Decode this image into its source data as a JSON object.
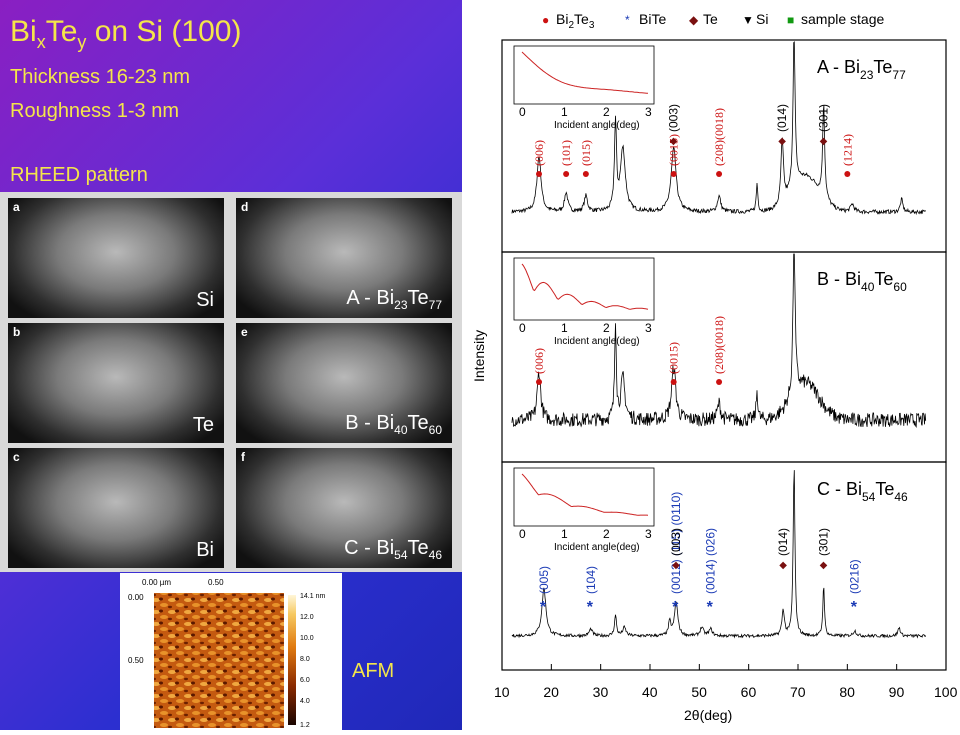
{
  "header": {
    "title_main": "Bi",
    "title_sub_x": "x",
    "title_mid": "Te",
    "title_sub_y": "y",
    "title_rest": " on Si (100)",
    "thickness": "Thickness 16-23 nm",
    "roughness": "Roughness  1-3 nm",
    "rheed_title": "RHEED pattern"
  },
  "rheed": {
    "panels": [
      {
        "letter": "a",
        "label": "Si",
        "sub": "",
        "label_post": "",
        "sub_post": ""
      },
      {
        "letter": "d",
        "label": "A - Bi",
        "sub": "23",
        "label_post": "Te",
        "sub_post": "77"
      },
      {
        "letter": "b",
        "label": "Te",
        "sub": "",
        "label_post": "",
        "sub_post": ""
      },
      {
        "letter": "e",
        "label": "B - Bi",
        "sub": "40",
        "label_post": "Te",
        "sub_post": "60"
      },
      {
        "letter": "c",
        "label": "Bi",
        "sub": "",
        "label_post": "",
        "sub_post": ""
      },
      {
        "letter": "f",
        "label": "C - Bi",
        "sub": "54",
        "label_post": "Te",
        "sub_post": "46"
      }
    ]
  },
  "afm": {
    "label": "AFM",
    "x_ticks": [
      "0.00 µm",
      "0.50"
    ],
    "y_ticks": [
      "0.00",
      "0.50"
    ],
    "scale_ticks": [
      "14.1 nm",
      "12.0",
      "10.0",
      "8.0",
      "6.0",
      "4.0",
      "1.2"
    ]
  },
  "chart_data": {
    "type": "line",
    "xlabel": "2θ(deg)",
    "ylabel": "Intensity",
    "xlim": [
      10,
      100
    ],
    "x_ticks": [
      "10",
      "20",
      "30",
      "40",
      "50",
      "60",
      "70",
      "80",
      "90",
      "100"
    ],
    "legend": [
      {
        "symbol": "●",
        "color": "#cc1111",
        "name": "Bi",
        "sub": "2",
        "post": "Te",
        "sub2": "3"
      },
      {
        "symbol": "*",
        "color": "#1a3ab5",
        "name": "BiTe",
        "sub": "",
        "post": "",
        "sub2": ""
      },
      {
        "symbol": "◆",
        "color": "#7a1010",
        "name": "Te",
        "sub": "",
        "post": "",
        "sub2": ""
      },
      {
        "symbol": "▼",
        "color": "#000000",
        "name": "Si",
        "sub": "",
        "post": "",
        "sub2": ""
      },
      {
        "symbol": "■",
        "color": "#119911",
        "name": "sample stage",
        "sub": "",
        "post": "",
        "sub2": ""
      }
    ],
    "inset": {
      "xlabel": "Incident angle(deg)",
      "ticks": [
        "0",
        "1",
        "2",
        "3"
      ]
    },
    "panels": [
      {
        "id": "A",
        "label_pre": "A - Bi",
        "label_sub1": "23",
        "label_mid": "Te",
        "label_sub2": "77",
        "peaks": [
          {
            "x": 17.5,
            "h": 0.35,
            "w": 0.5
          },
          {
            "x": 23.0,
            "h": 0.12,
            "w": 0.4
          },
          {
            "x": 27.0,
            "h": 0.1,
            "w": 0.4
          },
          {
            "x": 33.0,
            "h": 0.55,
            "w": 0.25
          },
          {
            "x": 34.5,
            "h": 0.4,
            "w": 0.6
          },
          {
            "x": 44.8,
            "h": 0.4,
            "w": 0.6
          },
          {
            "x": 54.0,
            "h": 0.1,
            "w": 0.4
          },
          {
            "x": 61.7,
            "h": 0.18,
            "w": 0.2
          },
          {
            "x": 66.8,
            "h": 0.4,
            "w": 0.3
          },
          {
            "x": 69.2,
            "h": 1.0,
            "w": 0.25
          },
          {
            "x": 75.2,
            "h": 0.6,
            "w": 0.25
          },
          {
            "x": 81.0,
            "h": 0.05,
            "w": 0.4
          },
          {
            "x": 91.0,
            "h": 0.08,
            "w": 0.3
          }
        ],
        "labels_red": [
          {
            "text": "(006)",
            "x": 17.5
          },
          {
            "text": "(101)",
            "x": 23.0
          },
          {
            "text": "(015)",
            "x": 27.0
          },
          {
            "text": "(0015)",
            "x": 44.8
          },
          {
            "text": "(208)(0018)",
            "x": 54.0
          },
          {
            "text": "(1214)",
            "x": 80.0
          }
        ],
        "labels_black": [
          {
            "text": "(003)",
            "x": 44.8
          },
          {
            "text": "(014)",
            "x": 66.8
          },
          {
            "text": "(301)",
            "x": 75.2
          }
        ]
      },
      {
        "id": "B",
        "label_pre": "B - Bi",
        "label_sub1": "40",
        "label_mid": "Te",
        "label_sub2": "60",
        "peaks": [
          {
            "x": 17.5,
            "h": 0.3,
            "w": 0.4
          },
          {
            "x": 33.0,
            "h": 0.6,
            "w": 0.2
          },
          {
            "x": 34.5,
            "h": 0.25,
            "w": 0.5
          },
          {
            "x": 44.8,
            "h": 0.32,
            "w": 0.5
          },
          {
            "x": 54.0,
            "h": 0.1,
            "w": 0.4
          },
          {
            "x": 61.7,
            "h": 0.18,
            "w": 0.2
          },
          {
            "x": 69.2,
            "h": 1.0,
            "w": 0.25
          }
        ],
        "labels_red": [
          {
            "text": "(006)",
            "x": 17.5
          },
          {
            "text": "(0015)",
            "x": 44.8
          },
          {
            "text": "(208)(0018)",
            "x": 54.0
          }
        ],
        "labels_black": []
      },
      {
        "id": "C",
        "label_pre": "C - Bi",
        "label_sub1": "54",
        "label_mid": "Te",
        "label_sub2": "46",
        "peaks": [
          {
            "x": 18.5,
            "h": 0.28,
            "w": 0.5
          },
          {
            "x": 28.0,
            "h": 0.04,
            "w": 0.4
          },
          {
            "x": 33.0,
            "h": 0.12,
            "w": 0.25
          },
          {
            "x": 34.8,
            "h": 0.05,
            "w": 0.4
          },
          {
            "x": 44.0,
            "h": 0.08,
            "w": 0.3
          },
          {
            "x": 45.3,
            "h": 0.2,
            "w": 0.4
          },
          {
            "x": 50.5,
            "h": 0.05,
            "w": 0.4
          },
          {
            "x": 52.3,
            "h": 0.04,
            "w": 0.4
          },
          {
            "x": 67.0,
            "h": 0.15,
            "w": 0.3
          },
          {
            "x": 69.2,
            "h": 1.0,
            "w": 0.22
          },
          {
            "x": 75.2,
            "h": 0.3,
            "w": 0.2
          },
          {
            "x": 81.5,
            "h": 0.03,
            "w": 0.4
          },
          {
            "x": 90.5,
            "h": 0.05,
            "w": 0.3
          }
        ],
        "labels_blue": [
          {
            "text": "(005)",
            "x": 18.5
          },
          {
            "text": "(104)",
            "x": 28.0
          },
          {
            "text": "(0012) (115) (0110)",
            "x": 45.3
          },
          {
            "text": "(0014) (026)",
            "x": 52.3
          },
          {
            "text": "(0216)",
            "x": 81.5
          }
        ],
        "labels_black": [
          {
            "text": "(003)",
            "x": 45.3
          },
          {
            "text": "(014)",
            "x": 67.0
          },
          {
            "text": "(301)",
            "x": 75.2
          }
        ]
      }
    ]
  }
}
